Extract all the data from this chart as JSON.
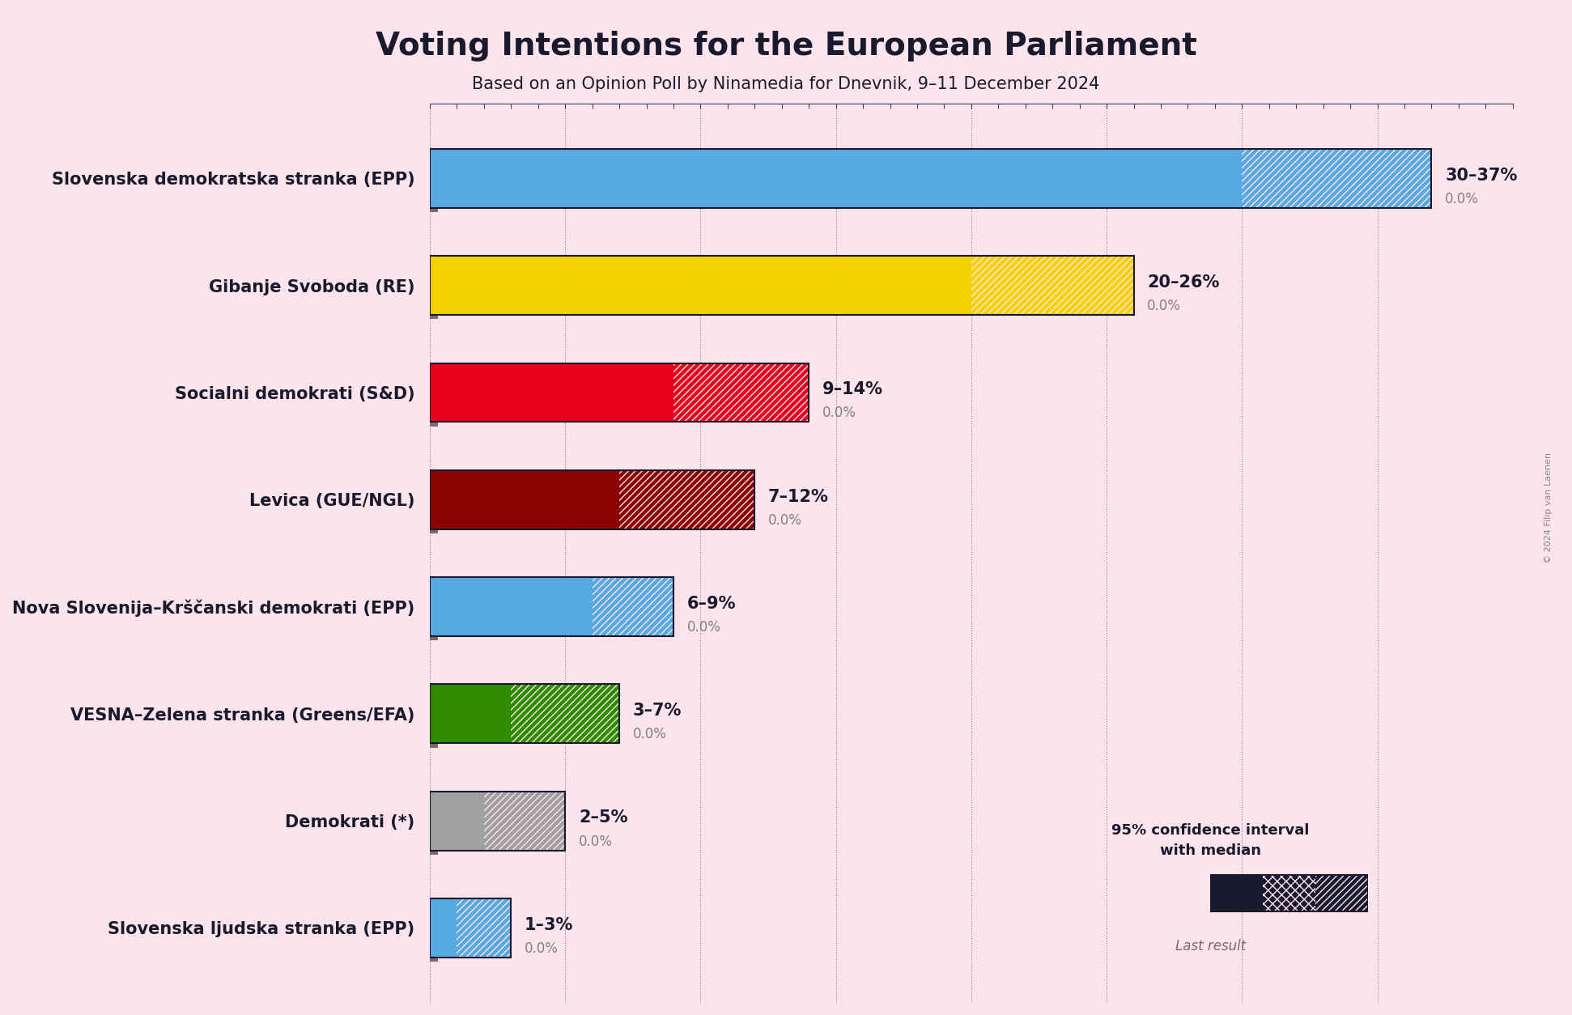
{
  "title": "Voting Intentions for the European Parliament",
  "subtitle": "Based on an Opinion Poll by Ninamedia for Dnevnik, 9–11 December 2024",
  "copyright": "© 2024 Filip van Laenen",
  "background_color": "#fce4ec",
  "parties": [
    {
      "name": "Slovenska demokratska stranka (EPP)",
      "color": "#56aae0",
      "median": 30,
      "low": 30,
      "high": 37,
      "last": 0.0,
      "label": "30–37%"
    },
    {
      "name": "Gibanje Svoboda (RE)",
      "color": "#f5d000",
      "median": 20,
      "low": 20,
      "high": 26,
      "last": 0.0,
      "label": "20–26%"
    },
    {
      "name": "Socialni demokrati (S&D)",
      "color": "#e8001c",
      "median": 9,
      "low": 9,
      "high": 14,
      "last": 0.0,
      "label": "9–14%"
    },
    {
      "name": "Levica (GUE/NGL)",
      "color": "#8b0000",
      "median": 7,
      "low": 7,
      "high": 12,
      "last": 0.0,
      "label": "7–12%"
    },
    {
      "name": "Nova Slovenija–Krščanski demokrati (EPP)",
      "color": "#56aae0",
      "median": 6,
      "low": 6,
      "high": 9,
      "last": 0.0,
      "label": "6–9%"
    },
    {
      "name": "VESNA–Zelena stranka (Greens/EFA)",
      "color": "#2e8b00",
      "median": 3,
      "low": 3,
      "high": 7,
      "last": 0.0,
      "label": "3–7%"
    },
    {
      "name": "Demokrati (*)",
      "color": "#a0a0a0",
      "median": 2,
      "low": 2,
      "high": 5,
      "last": 0.0,
      "label": "2–5%"
    },
    {
      "name": "Slovenska ljudska stranka (EPP)",
      "color": "#56aae0",
      "median": 1,
      "low": 1,
      "high": 3,
      "last": 0.0,
      "label": "1–3%"
    }
  ],
  "xlim": [
    0,
    40
  ],
  "text_color": "#1a1a2e",
  "label_fontsize": 15,
  "title_fontsize": 28,
  "subtitle_fontsize": 15,
  "bar_height": 0.55,
  "last_result_color": "#7b6a6a"
}
